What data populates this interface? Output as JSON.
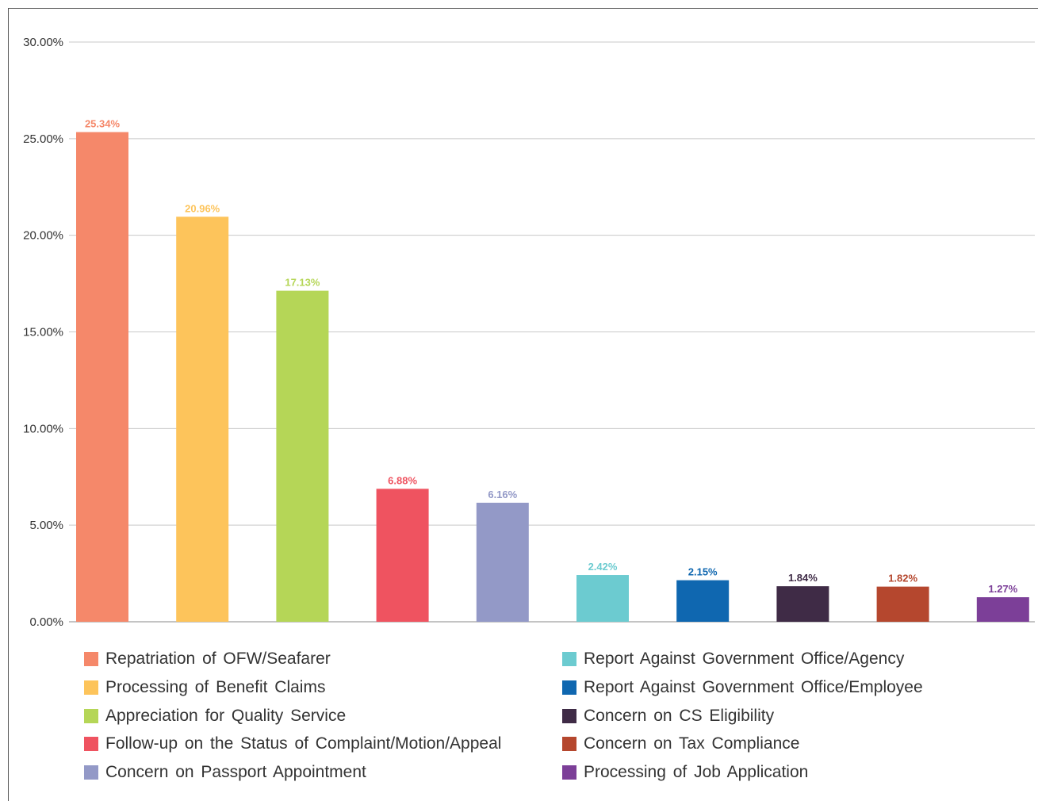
{
  "chart_data": {
    "type": "bar",
    "categories": [
      "Repatriation of OFW/Seafarer",
      "Processing of Benefit Claims",
      "Appreciation for Quality Service",
      "Follow-up on the Status of Complaint/Motion/Appeal",
      "Concern on Passport Appointment",
      "Report Against Government Office/Agency",
      "Report Against Government Office/Employee",
      "Concern on CS Eligibility",
      "Concern on Tax Compliance",
      "Processing of Job Application"
    ],
    "values": [
      25.34,
      20.96,
      17.13,
      6.88,
      6.16,
      2.42,
      2.15,
      1.84,
      1.82,
      1.27
    ],
    "data_labels": [
      "25.34%",
      "20.96%",
      "17.13%",
      "6.88%",
      "6.16%",
      "2.42%",
      "2.15%",
      "1.84%",
      "1.82%",
      "1.27%"
    ],
    "colors": [
      "#f5886a",
      "#fdc45b",
      "#b5d657",
      "#ef5360",
      "#9399c7",
      "#6ccbd0",
      "#0f67b0",
      "#3f2b46",
      "#b5472e",
      "#7c3f98"
    ],
    "label_colors": [
      "#f5886a",
      "#fdc45b",
      "#b5d657",
      "#ef5360",
      "#9399c7",
      "#6ccbd0",
      "#0f67b0",
      "#3f2b46",
      "#b5472e",
      "#7c3f98"
    ],
    "ylim": [
      0,
      30
    ],
    "yticks": [
      0,
      5,
      10,
      15,
      20,
      25,
      30
    ],
    "ytick_labels": [
      "0.00%",
      "5.00%",
      "10.00%",
      "15.00%",
      "20.00%",
      "25.00%",
      "30.00%"
    ],
    "grid": true,
    "legend": {
      "placement": "bottom",
      "columns": 2
    },
    "title": "",
    "xlabel": "",
    "ylabel": ""
  }
}
